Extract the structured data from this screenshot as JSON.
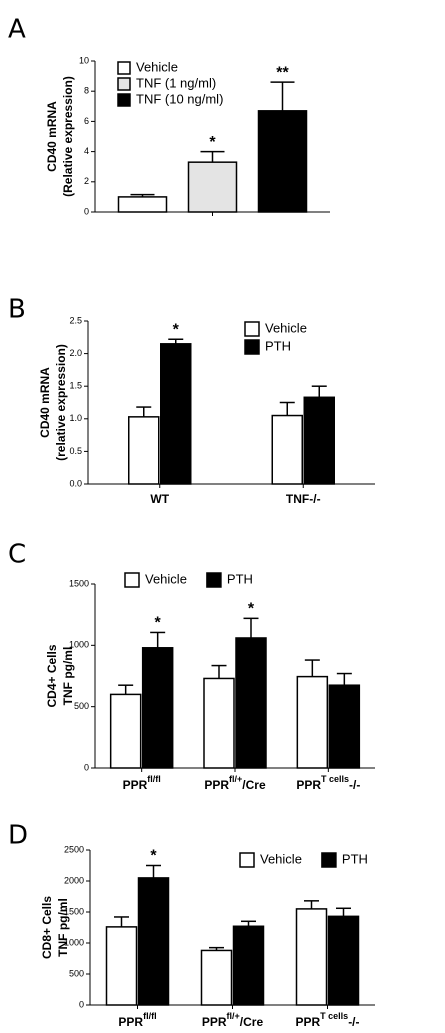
{
  "chart_data": [
    {
      "type": "bar",
      "panel_label": "A",
      "ylabel": [
        "CD40 mRNA",
        "(Relative expression)"
      ],
      "categories": [
        null
      ],
      "series": [
        {
          "name": "Vehicle",
          "color": "#ffffff",
          "values": [
            1.0
          ],
          "errors": [
            0.15
          ]
        },
        {
          "name": "TNF (1 ng/ml)",
          "color": "#e4e4e4",
          "values": [
            3.3
          ],
          "errors": [
            0.7
          ]
        },
        {
          "name": "TNF (10 ng/ml)",
          "color": "#000000",
          "values": [
            6.7
          ],
          "errors": [
            1.9
          ]
        }
      ],
      "ylim": [
        0,
        10
      ],
      "yticks": [
        0,
        2,
        4,
        6,
        8,
        10
      ],
      "legend": "upper left",
      "annotations": [
        {
          "text": "*",
          "series": 1,
          "category": 0
        },
        {
          "text": "**",
          "series": 2,
          "category": 0
        }
      ]
    },
    {
      "type": "bar",
      "panel_label": "B",
      "ylabel": [
        "CD40 mRNA",
        "(relative expression)"
      ],
      "categories": [
        "WT",
        "TNF-/-"
      ],
      "series": [
        {
          "name": "Vehicle",
          "color": "#ffffff",
          "values": [
            1.03,
            1.05
          ],
          "errors": [
            0.15,
            0.2
          ]
        },
        {
          "name": "PTH",
          "color": "#000000",
          "values": [
            2.15,
            1.33
          ],
          "errors": [
            0.07,
            0.17
          ]
        }
      ],
      "ylim": [
        0,
        2.5
      ],
      "yticks": [
        {
          "value": 0,
          "label": "0.0"
        },
        {
          "value": 0.5,
          "label": "0.5"
        },
        {
          "value": 1,
          "label": "1.0"
        },
        {
          "value": 1.5,
          "label": "1.5"
        },
        {
          "value": 2,
          "label": "2.0"
        },
        {
          "value": 2.5,
          "label": "2.5"
        }
      ],
      "legend": "upper right",
      "annotations": [
        {
          "text": "*",
          "series": 1,
          "category": 0
        }
      ]
    },
    {
      "type": "bar",
      "panel_label": "C",
      "ylabel": [
        "CD4+ Cells",
        "TNF pg/ml"
      ],
      "categories": [
        {
          "text": "PPR",
          "sup": "fl/fl"
        },
        {
          "text": "PPR",
          "sup": "fl/+",
          "suffix": "/Cre"
        },
        {
          "text": "PPR",
          "sup": "T cells",
          "suffix": "-/-"
        }
      ],
      "series": [
        {
          "name": "Vehicle",
          "color": "#ffffff",
          "values": [
            600,
            730,
            745
          ],
          "errors": [
            75,
            105,
            135
          ]
        },
        {
          "name": "PTH",
          "color": "#000000",
          "values": [
            980,
            1060,
            675
          ],
          "errors": [
            125,
            160,
            95
          ]
        }
      ],
      "ylim": [
        0,
        1500
      ],
      "yticks": [
        0,
        500,
        1000,
        1500
      ],
      "legend": "upper left",
      "annotations": [
        {
          "text": "*",
          "series": 1,
          "category": 0
        },
        {
          "text": "*",
          "series": 1,
          "category": 1
        }
      ]
    },
    {
      "type": "bar",
      "panel_label": "D",
      "ylabel": [
        "CD8+ Cells",
        "TNF pg/ml"
      ],
      "categories": [
        {
          "text": "PPR",
          "sup": "fl/fl"
        },
        {
          "text": "PPR",
          "sup": "fl/+",
          "suffix": "/Cre"
        },
        {
          "text": "PPR",
          "sup": "T cells",
          "suffix": "-/-"
        }
      ],
      "series": [
        {
          "name": "Vehicle",
          "color": "#ffffff",
          "values": [
            1260,
            880,
            1550
          ],
          "errors": [
            160,
            45,
            130
          ]
        },
        {
          "name": "PTH",
          "color": "#000000",
          "values": [
            2050,
            1270,
            1430
          ],
          "errors": [
            200,
            80,
            130
          ]
        }
      ],
      "ylim": [
        0,
        2500
      ],
      "yticks": [
        0,
        500,
        1000,
        1500,
        2000,
        2500
      ],
      "legend": "upper right",
      "annotations": [
        {
          "text": "*",
          "series": 1,
          "category": 0
        }
      ]
    }
  ]
}
